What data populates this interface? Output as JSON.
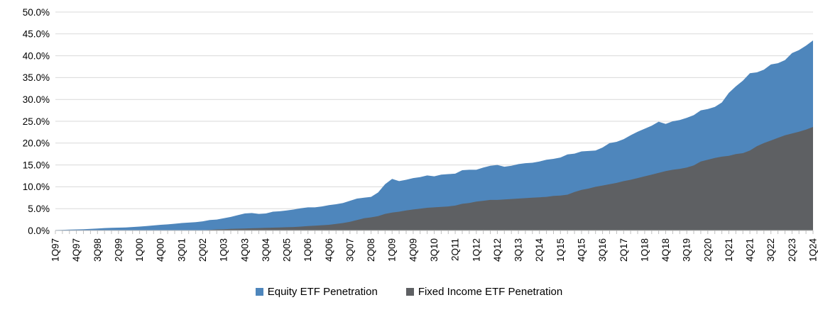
{
  "chart_data": {
    "type": "area",
    "title": "",
    "xlabel": "",
    "ylabel": "",
    "legend_position": "bottom",
    "grid": true,
    "x_tick_every": 3,
    "y_axis": {
      "min": 0,
      "max": 50,
      "step": 5,
      "tick_labels": [
        "0.0%",
        "5.0%",
        "10.0%",
        "15.0%",
        "20.0%",
        "25.0%",
        "30.0%",
        "35.0%",
        "40.0%",
        "45.0%",
        "50.0%"
      ]
    },
    "quarters": [
      "1Q97",
      "2Q97",
      "3Q97",
      "4Q97",
      "1Q98",
      "2Q98",
      "3Q98",
      "4Q98",
      "1Q99",
      "2Q99",
      "3Q99",
      "4Q99",
      "1Q00",
      "2Q00",
      "3Q00",
      "4Q00",
      "1Q01",
      "2Q01",
      "3Q01",
      "4Q01",
      "1Q02",
      "2Q02",
      "3Q02",
      "4Q02",
      "1Q03",
      "2Q03",
      "3Q03",
      "4Q03",
      "1Q04",
      "2Q04",
      "3Q04",
      "4Q04",
      "1Q05",
      "2Q05",
      "3Q05",
      "4Q05",
      "1Q06",
      "2Q06",
      "3Q06",
      "4Q06",
      "1Q07",
      "2Q07",
      "3Q07",
      "4Q07",
      "1Q08",
      "2Q08",
      "3Q08",
      "4Q08",
      "1Q09",
      "2Q09",
      "3Q09",
      "4Q09",
      "1Q10",
      "2Q10",
      "3Q10",
      "4Q10",
      "1Q11",
      "2Q11",
      "3Q11",
      "4Q11",
      "1Q12",
      "2Q12",
      "3Q12",
      "4Q12",
      "1Q13",
      "2Q13",
      "3Q13",
      "4Q13",
      "1Q14",
      "2Q14",
      "3Q14",
      "4Q14",
      "1Q15",
      "2Q15",
      "3Q15",
      "4Q15",
      "1Q16",
      "2Q16",
      "3Q16",
      "4Q16",
      "1Q17",
      "2Q17",
      "3Q17",
      "4Q17",
      "1Q18",
      "2Q18",
      "3Q18",
      "4Q18",
      "1Q19",
      "2Q19",
      "3Q19",
      "4Q19",
      "1Q20",
      "2Q20",
      "3Q20",
      "4Q20",
      "1Q21",
      "2Q21",
      "3Q21",
      "4Q21",
      "1Q22",
      "2Q22",
      "3Q22",
      "4Q22",
      "1Q23",
      "2Q23",
      "3Q23",
      "4Q23",
      "1Q24"
    ],
    "series": [
      {
        "name": "Equity ETF Penetration",
        "color": "#4E86BC",
        "values": [
          0.1,
          0.15,
          0.2,
          0.25,
          0.3,
          0.35,
          0.45,
          0.55,
          0.6,
          0.65,
          0.7,
          0.8,
          0.9,
          1.0,
          1.15,
          1.3,
          1.4,
          1.55,
          1.7,
          1.8,
          1.9,
          2.1,
          2.4,
          2.5,
          2.8,
          3.1,
          3.5,
          3.9,
          4.0,
          3.8,
          3.9,
          4.3,
          4.4,
          4.6,
          4.8,
          5.1,
          5.3,
          5.3,
          5.5,
          5.8,
          6.0,
          6.3,
          6.8,
          7.3,
          7.5,
          7.7,
          8.7,
          10.6,
          11.8,
          11.3,
          11.6,
          12.0,
          12.2,
          12.6,
          12.4,
          12.8,
          12.9,
          13.0,
          13.8,
          13.9,
          13.9,
          14.4,
          14.8,
          15.0,
          14.6,
          14.8,
          15.2,
          15.4,
          15.5,
          15.8,
          16.2,
          16.4,
          16.7,
          17.4,
          17.6,
          18.1,
          18.2,
          18.3,
          19.0,
          20.0,
          20.3,
          20.9,
          21.8,
          22.6,
          23.3,
          24.0,
          24.9,
          24.4,
          25.0,
          25.3,
          25.8,
          26.4,
          27.5,
          27.8,
          28.3,
          29.3,
          31.5,
          33.0,
          34.3,
          36.0,
          36.2,
          36.8,
          38.0,
          38.3,
          39.0,
          40.6,
          41.3,
          42.3,
          43.5
        ]
      },
      {
        "name": "Fixed Income ETF Penetration",
        "color": "#5E6063",
        "values": [
          0,
          0,
          0,
          0,
          0,
          0,
          0,
          0,
          0,
          0,
          0,
          0,
          0,
          0,
          0,
          0,
          0,
          0,
          0,
          0,
          0,
          0.05,
          0.15,
          0.25,
          0.3,
          0.35,
          0.4,
          0.45,
          0.5,
          0.55,
          0.6,
          0.65,
          0.7,
          0.75,
          0.8,
          0.9,
          1.0,
          1.1,
          1.2,
          1.3,
          1.5,
          1.7,
          2.0,
          2.4,
          2.8,
          3.0,
          3.3,
          3.8,
          4.1,
          4.3,
          4.6,
          4.8,
          5.0,
          5.2,
          5.3,
          5.4,
          5.5,
          5.7,
          6.1,
          6.3,
          6.6,
          6.8,
          7.0,
          7.0,
          7.1,
          7.2,
          7.3,
          7.4,
          7.5,
          7.6,
          7.7,
          7.9,
          8.0,
          8.2,
          8.8,
          9.3,
          9.6,
          10.0,
          10.3,
          10.6,
          10.9,
          11.3,
          11.6,
          12.0,
          12.4,
          12.8,
          13.2,
          13.6,
          13.9,
          14.1,
          14.4,
          14.9,
          15.8,
          16.2,
          16.6,
          16.9,
          17.1,
          17.5,
          17.7,
          18.3,
          19.3,
          20.0,
          20.6,
          21.2,
          21.8,
          22.2,
          22.6,
          23.1,
          23.7
        ]
      }
    ],
    "colors": {
      "gridline": "#D9D9D9",
      "axis_line": "#BFBFBF",
      "tick": "#BFBFBF",
      "label_text": "#000000"
    }
  }
}
